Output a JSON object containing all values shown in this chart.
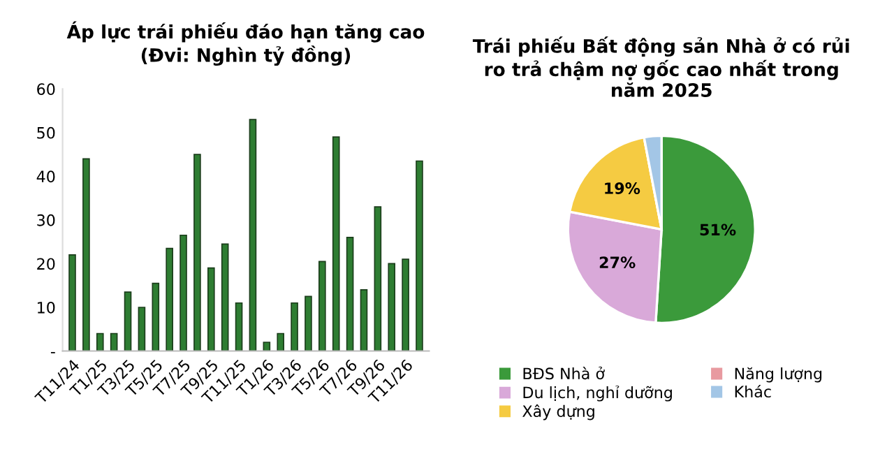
{
  "chart_data": [
    {
      "type": "bar",
      "title": "Áp lực trái phiếu đáo hạn tăng cao\n(Đvi: Nghìn tỷ đồng)",
      "categories": [
        "T11/24",
        null,
        "T1/25",
        null,
        "T3/25",
        null,
        "T5/25",
        null,
        "T7/25",
        null,
        "T9/25",
        null,
        "T11/25",
        null,
        "T1/26",
        null,
        "T3/26",
        null,
        "T5/26",
        null,
        "T7/26",
        null,
        "T9/26",
        null,
        "T11/26",
        null
      ],
      "values": [
        22,
        44,
        4,
        4,
        13.5,
        10,
        15.5,
        23.5,
        26.5,
        45,
        19,
        24.5,
        11,
        53,
        2,
        4,
        11,
        12.5,
        20.5,
        49,
        26,
        14,
        33,
        20,
        21,
        43.5
      ],
      "color": "#2e7d32",
      "ylim": [
        0,
        60
      ],
      "yticks": [
        {
          "value": 0,
          "label": "-"
        },
        10,
        20,
        30,
        40,
        50,
        60
      ],
      "grid": false
    },
    {
      "type": "pie",
      "title": "Trái phiếu Bất động sản Nhà ở có rủi\nro trả chậm nợ gốc cao nhất trong\nnăm 2025",
      "categories": [
        "BĐS Nhà ở",
        "Du lịch, nghỉ dưỡng",
        "Xây dựng",
        "Năng lượng",
        "Khác"
      ],
      "values": [
        51,
        27,
        19,
        0,
        3
      ],
      "value_labels": [
        "51%",
        "27%",
        "19%",
        null,
        null
      ],
      "colors": [
        "#3b9a3b",
        "#d9a9d9",
        "#f5cb42",
        "#e89aa0",
        "#a3c6e6"
      ],
      "legend": "bottom"
    }
  ]
}
